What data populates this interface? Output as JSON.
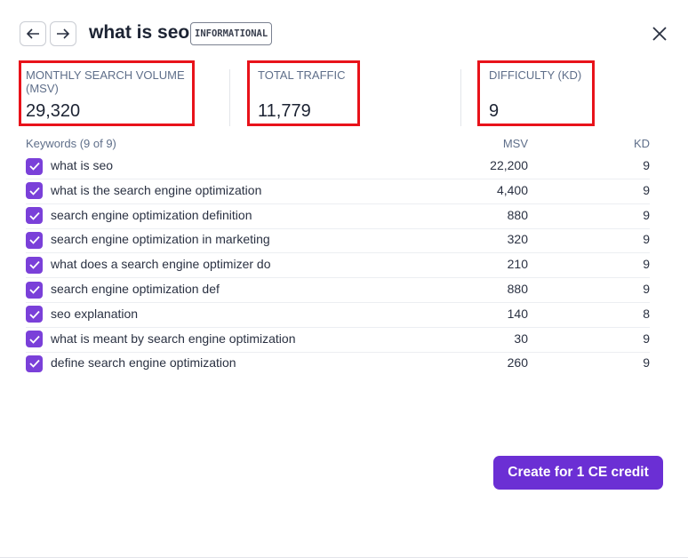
{
  "header": {
    "title": "what is seo",
    "badge": "INFORMATIONAL"
  },
  "stats": [
    {
      "label": "MONTHLY SEARCH VOLUME (MSV)",
      "value": "29,320"
    },
    {
      "label": "TOTAL TRAFFIC",
      "value": "11,779"
    },
    {
      "label": "DIFFICULTY (KD)",
      "value": "9"
    }
  ],
  "table": {
    "columns": [
      "Keywords (9 of 9)",
      "MSV",
      "KD"
    ],
    "rows": [
      [
        "what is seo",
        "22,200",
        "9"
      ],
      [
        "what is the search engine optimization",
        "4,400",
        "9"
      ],
      [
        "search engine optimization definition",
        "880",
        "9"
      ],
      [
        "search engine optimization in marketing",
        "320",
        "9"
      ],
      [
        "what does a search engine optimizer do",
        "210",
        "9"
      ],
      [
        "search engine optimization def",
        "880",
        "9"
      ],
      [
        "seo explanation",
        "140",
        "8"
      ],
      [
        "what is meant by search engine optimization",
        "30",
        "9"
      ],
      [
        "define search engine optimization",
        "260",
        "9"
      ]
    ]
  },
  "button": "Create for 1 CE credit"
}
